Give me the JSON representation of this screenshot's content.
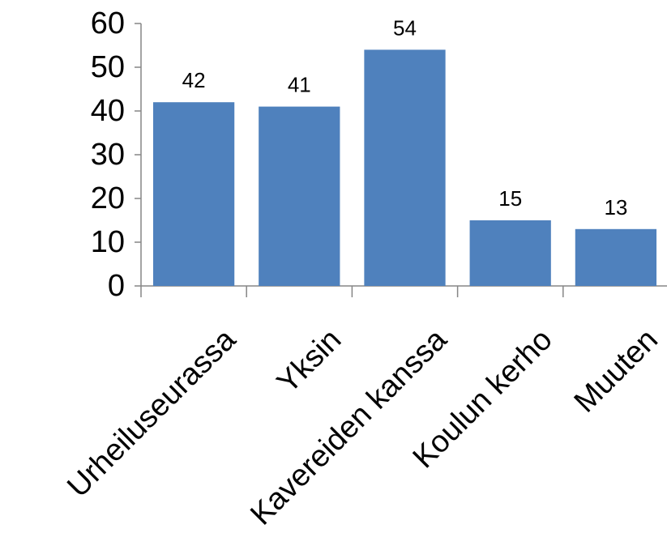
{
  "chart_data": {
    "type": "bar",
    "title": "",
    "xlabel": "",
    "ylabel": "",
    "categories": [
      "Urheiluseurassa",
      "Yksin",
      "Kavereiden kanssa",
      "Koulun kerho",
      "Muuten"
    ],
    "values": [
      42,
      41,
      54,
      15,
      13
    ],
    "data_labels": [
      "42",
      "41",
      "54",
      "15",
      "13"
    ],
    "ylim": [
      0,
      60
    ],
    "yticks": [
      0,
      10,
      20,
      30,
      40,
      50,
      60
    ],
    "ytick_labels": [
      "0",
      "10",
      "20",
      "30",
      "40",
      "50",
      "60"
    ],
    "grid": false,
    "legend": "none",
    "bar_color": "#4f81bd",
    "axis_color": "#868686"
  }
}
